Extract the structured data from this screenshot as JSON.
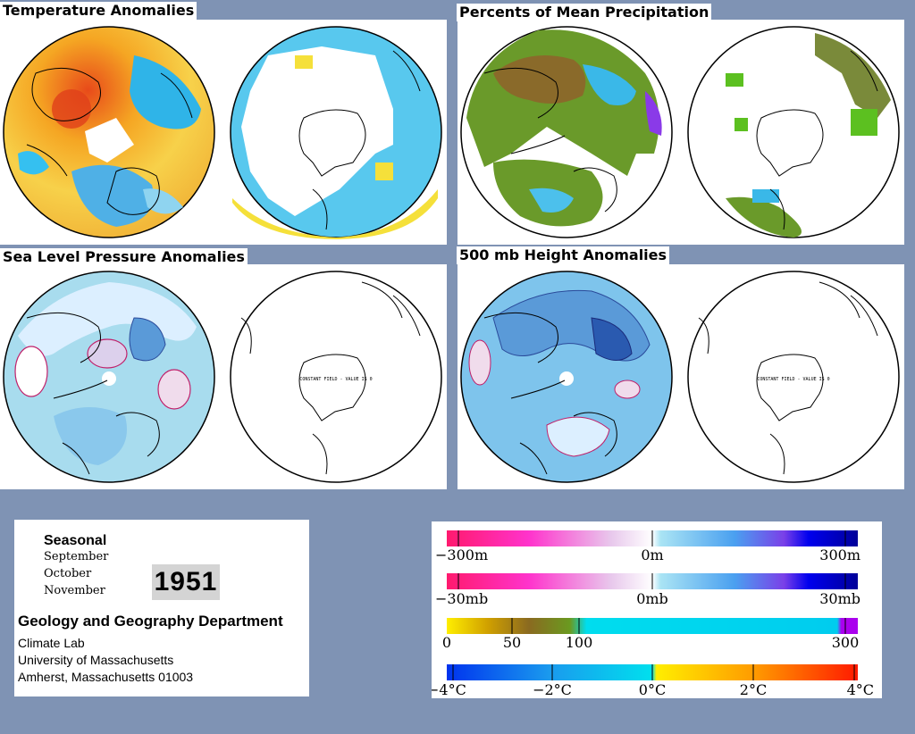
{
  "panels": [
    {
      "id": "temp",
      "title": "Temperature Anomalies",
      "palette": "temp"
    },
    {
      "id": "precip",
      "title": "Percents of Mean Precipitation",
      "palette": "precip"
    },
    {
      "id": "slp",
      "title": "Sea Level Pressure Anomalies",
      "palette": "slp"
    },
    {
      "id": "h500",
      "title": "500 mb Height Anomalies",
      "palette": "h500"
    }
  ],
  "constant_field_note": "CONSTANT FIELD - VALUE IS 0",
  "season": {
    "label": "Seasonal",
    "months": [
      "September",
      "October",
      "November"
    ],
    "year": "1951"
  },
  "institution": {
    "department": "Geology and Geography Department",
    "lines": [
      "Climate Lab",
      "University of Massachusetts",
      "Amherst, Massachusetts 01003"
    ]
  },
  "legends": [
    {
      "name": "height-scale",
      "labels": [
        "−300m",
        "0m",
        "300m"
      ]
    },
    {
      "name": "pressure-scale",
      "labels": [
        "−30mb",
        "0mb",
        "30mb"
      ]
    },
    {
      "name": "precip-scale",
      "labels": [
        "0",
        "50",
        "100",
        "300"
      ]
    },
    {
      "name": "temp-scale",
      "labels": [
        "−4°C",
        "−2°C",
        "0°C",
        "2°C",
        "4°C"
      ]
    }
  ],
  "colors": {
    "background": "#7f93b4",
    "negative_anomaly": "#ff1493",
    "positive_anomaly": "#0000cc",
    "precip_dry": "#ffff00",
    "precip_normal": "#00ccee",
    "temp_cold": "#0044ff",
    "temp_warm": "#ff2200"
  }
}
